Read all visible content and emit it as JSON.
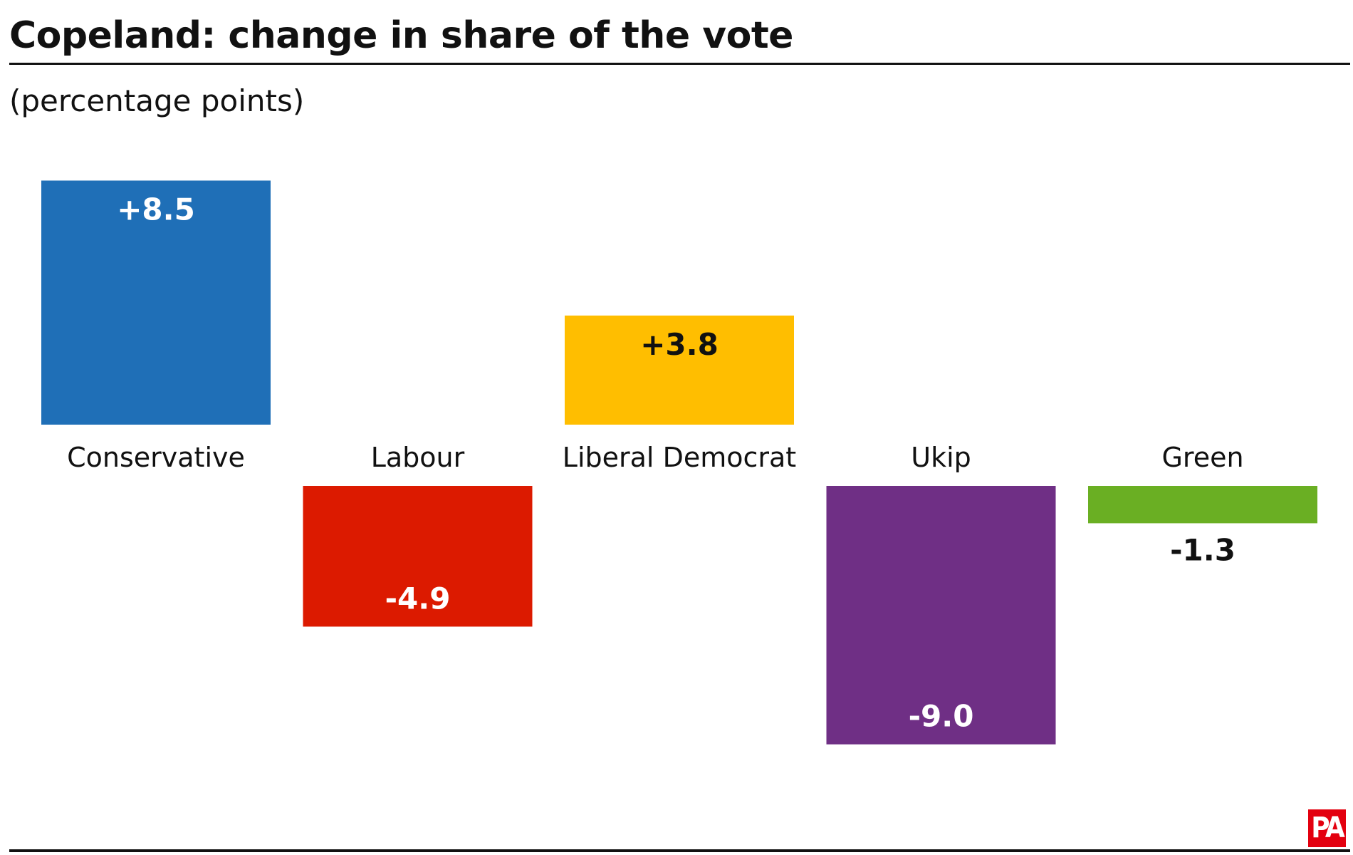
{
  "title": "Copeland: change in share of the vote",
  "subtitle": "(percentage points)",
  "logo_text": "PA",
  "chart_data": {
    "type": "bar",
    "title": "Copeland: change in share of the vote",
    "subtitle": "(percentage points)",
    "categories": [
      "Conservative",
      "Labour",
      "Liberal Democrat",
      "Ukip",
      "Green"
    ],
    "values": [
      8.5,
      -4.9,
      3.8,
      -9.0,
      -1.3
    ],
    "labels": [
      "+8.5",
      "-4.9",
      "+3.8",
      "-9.0",
      "-1.3"
    ],
    "colors": [
      "#1f6fb7",
      "#dc1a00",
      "#ffbe00",
      "#6f2f85",
      "#6aaf23"
    ],
    "label_colors": [
      "#ffffff",
      "#ffffff",
      "#111111",
      "#ffffff",
      "#111111"
    ],
    "ylim": [
      -9.0,
      8.5
    ],
    "grid": false,
    "legend": "none",
    "xlabel": "",
    "ylabel": ""
  }
}
